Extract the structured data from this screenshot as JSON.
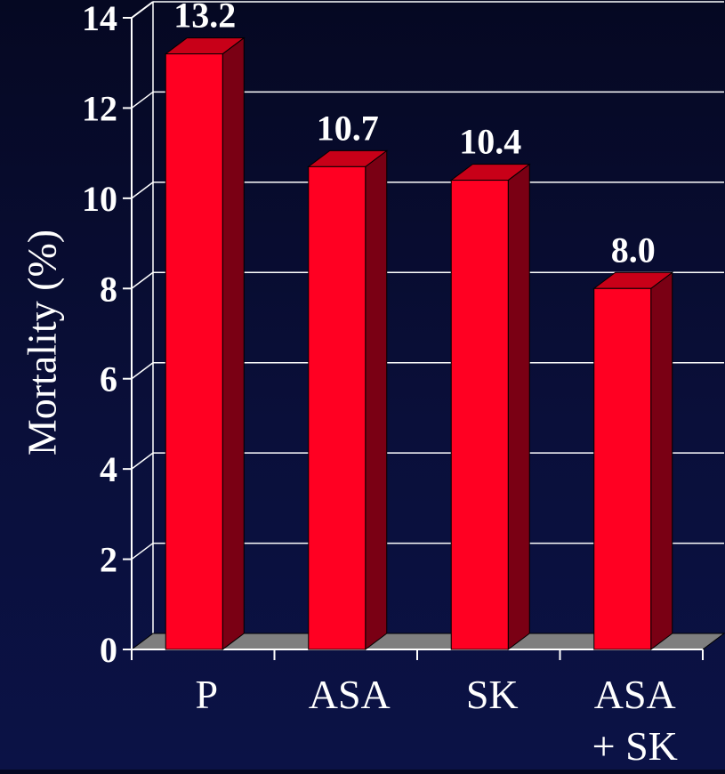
{
  "chart_data": {
    "type": "bar",
    "categories": [
      "P",
      "ASA",
      "SK",
      "ASA\n+ SK"
    ],
    "values": [
      13.2,
      10.7,
      10.4,
      8.0
    ],
    "data_labels": [
      "13.2",
      "10.7",
      "10.4",
      "8.0"
    ],
    "title": "",
    "xlabel": "",
    "ylabel": "Mortality  (%)",
    "ylim": [
      0,
      14
    ],
    "yticks": [
      0,
      2,
      4,
      6,
      8,
      10,
      12,
      14
    ],
    "grid": true,
    "style": "3d",
    "colors": {
      "bar_front": "#ff0022",
      "bar_side": "#7a0014",
      "bar_top": "#c80018",
      "axis": "#ffffff",
      "floor": "#7f7f7f",
      "text": "#ffffff"
    }
  }
}
